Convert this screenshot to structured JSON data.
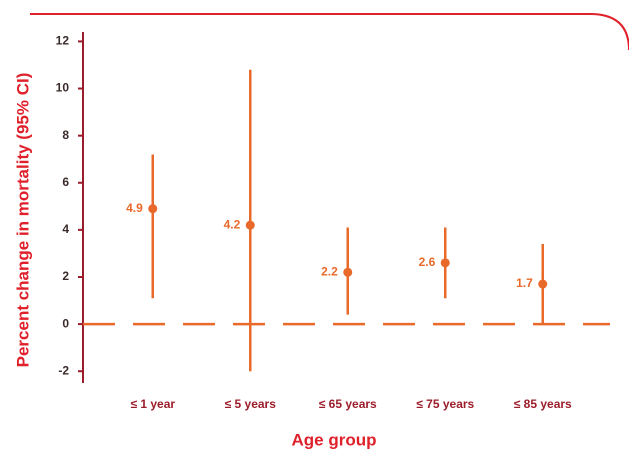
{
  "chart_data": {
    "type": "errorbar",
    "ylabel": "Percent change in mortality (95% CI)",
    "xlabel": "Age group",
    "categories": [
      "≤ 1 year",
      "≤ 5 years",
      "≤ 65 years",
      "≤ 75 years",
      "≤ 85 years"
    ],
    "series": [
      {
        "color": "#e8692a",
        "values": [
          4.9,
          4.2,
          2.2,
          2.6,
          1.7
        ],
        "lower": [
          1.1,
          -2.0,
          0.4,
          1.1,
          0.0
        ],
        "upper": [
          7.2,
          10.8,
          4.1,
          4.1,
          3.4
        ]
      }
    ],
    "ylim": [
      -2.5,
      12.4
    ],
    "yticks": [
      -2,
      0,
      2,
      4,
      6,
      8,
      10,
      12
    ],
    "reference_line": 0
  }
}
